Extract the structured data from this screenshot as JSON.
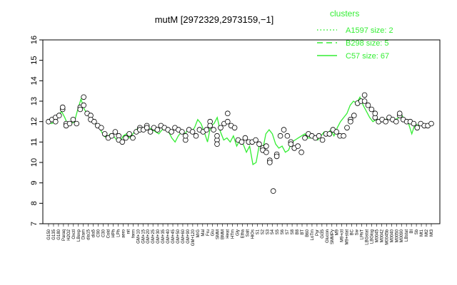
{
  "chart_data": {
    "type": "line",
    "title": "mutM [2972329,2973159,−1]",
    "xlabel": "",
    "ylabel": "",
    "ylim": [
      7,
      16
    ],
    "yticks": [
      7,
      8,
      9,
      10,
      11,
      12,
      13,
      14,
      15,
      16
    ],
    "grid": false,
    "legend_placement": "top-right",
    "legend_title": "clusters",
    "legend_color": "#33ee33",
    "legend": [
      {
        "label": "A1597 size: 2",
        "dash": "dotted"
      },
      {
        "label": "B298 size: 5",
        "dash": "dashed"
      },
      {
        "label": "C57 size: 67",
        "dash": "solid"
      }
    ],
    "x_tick_labels": [
      "G150",
      "G135",
      "G180",
      "Paraq",
      "H2O2",
      "Oxctl",
      "LBexp",
      "Diam",
      "dia15",
      "dia5",
      "C90",
      "C30",
      "Cold",
      "HPh",
      "LPh",
      "aero",
      "nit",
      "ferm",
      "GM+10",
      "GM+15",
      "GM+20",
      "GM+25",
      "GM+30",
      "GM+35",
      "GM+40",
      "GM+45",
      "GM+50",
      "GM+60",
      "GM+90",
      "GM+120",
      "M/G",
      "Mal",
      "Fru",
      "Glu",
      "SMM",
      "BMM",
      "Heat",
      "HTm",
      "Gly",
      "Etha",
      "Salt",
      "HiOs",
      "S1",
      "S2",
      "S3",
      "S4",
      "S5",
      "S6",
      "S7",
      "S8",
      "B8",
      "BT",
      "B60",
      "LoTm",
      "Pyr",
      "Gi35",
      "Glucon",
      "SMMPy",
      "M9",
      "M9+ctl",
      "M9+stat",
      "BC",
      "Sw",
      "LPhT",
      "LBGstat",
      "LBGlog",
      "M0045",
      "M0042",
      "M0045b",
      "M0040",
      "M0050",
      "M0090",
      "LBstat",
      "BI",
      "Sb",
      "Mt1",
      "Mt2",
      "Mt3"
    ],
    "series": [
      {
        "values": [
          12.0,
          11.9,
          12.0,
          12.3,
          12.5,
          12.2,
          11.8,
          11.9,
          12.0,
          12.6,
          13.1,
          12.6,
          12.4,
          12.3,
          12.0,
          11.8,
          11.6,
          11.3,
          11.2,
          11.4,
          11.3,
          11.1,
          11.0,
          11.3,
          11.4,
          11.2,
          11.4,
          11.6,
          11.7,
          11.6,
          11.8,
          11.7,
          11.6,
          11.5,
          11.4,
          11.6,
          11.7,
          11.5,
          11.2,
          11.0,
          11.3,
          11.5,
          11.4,
          11.6,
          11.5,
          11.7,
          12.1,
          11.9,
          11.5,
          11.0,
          11.8,
          11.9,
          12.2,
          11.5,
          11.1,
          11.2,
          11.0,
          11.3,
          10.8,
          11.1,
          10.9,
          10.5,
          10.8,
          9.9,
          10.0,
          10.9,
          10.6,
          11.4,
          11.6,
          11.4,
          10.9,
          10.7,
          10.8,
          10.5,
          10.6,
          11.0,
          11.1,
          11.2,
          11.3,
          11.4,
          11.2,
          11.2,
          11.2,
          11.1,
          11.3,
          11.5,
          11.4,
          11.6,
          11.3,
          11.7,
          12.0,
          12.2,
          12.4,
          12.8,
          13.0,
          12.9,
          13.2,
          12.8,
          12.5,
          12.2,
          12.0,
          12.1,
          12.1,
          12.0,
          12.1,
          12.2,
          12.0,
          12.1,
          12.2,
          12.3,
          12.0,
          11.9,
          11.4,
          11.9,
          11.8,
          11.9,
          11.7,
          11.8,
          11.9
        ]
      }
    ],
    "points": [
      [
        0,
        12.0
      ],
      [
        1,
        12.1
      ],
      [
        2,
        12.2
      ],
      [
        2,
        12.0
      ],
      [
        3,
        12.3
      ],
      [
        4,
        12.6
      ],
      [
        4,
        12.7
      ],
      [
        5,
        11.9
      ],
      [
        5,
        11.8
      ],
      [
        6,
        11.9
      ],
      [
        7,
        12.1
      ],
      [
        8,
        11.9
      ],
      [
        9,
        12.7
      ],
      [
        9,
        12.6
      ],
      [
        10,
        13.2
      ],
      [
        10,
        12.8
      ],
      [
        11,
        12.4
      ],
      [
        12,
        12.3
      ],
      [
        12,
        12.1
      ],
      [
        13,
        12.0
      ],
      [
        14,
        11.8
      ],
      [
        15,
        11.7
      ],
      [
        16,
        11.4
      ],
      [
        17,
        11.2
      ],
      [
        18,
        11.3
      ],
      [
        19,
        11.5
      ],
      [
        20,
        11.3
      ],
      [
        20,
        11.1
      ],
      [
        21,
        11.0
      ],
      [
        22,
        11.2
      ],
      [
        23,
        11.4
      ],
      [
        24,
        11.2
      ],
      [
        25,
        11.5
      ],
      [
        26,
        11.7
      ],
      [
        26,
        11.6
      ],
      [
        27,
        11.6
      ],
      [
        28,
        11.8
      ],
      [
        28,
        11.7
      ],
      [
        29,
        11.5
      ],
      [
        30,
        11.7
      ],
      [
        31,
        11.6
      ],
      [
        32,
        11.8
      ],
      [
        33,
        11.7
      ],
      [
        34,
        11.6
      ],
      [
        35,
        11.5
      ],
      [
        36,
        11.7
      ],
      [
        37,
        11.6
      ],
      [
        38,
        11.5
      ],
      [
        39,
        11.1
      ],
      [
        39,
        11.3
      ],
      [
        40,
        11.6
      ],
      [
        41,
        11.5
      ],
      [
        42,
        11.3
      ],
      [
        43,
        11.6
      ],
      [
        44,
        11.5
      ],
      [
        45,
        11.6
      ],
      [
        46,
        12.0
      ],
      [
        46,
        11.8
      ],
      [
        47,
        11.6
      ],
      [
        48,
        11.1
      ],
      [
        48,
        10.9
      ],
      [
        48,
        11.3
      ],
      [
        49,
        11.7
      ],
      [
        50,
        11.9
      ],
      [
        51,
        12.0
      ],
      [
        51,
        12.4
      ],
      [
        52,
        11.8
      ],
      [
        53,
        11.7
      ],
      [
        54,
        11.1
      ],
      [
        55,
        11.0
      ],
      [
        56,
        11.2
      ],
      [
        57,
        11.0
      ],
      [
        58,
        11.0
      ],
      [
        59,
        11.1
      ],
      [
        60,
        10.9
      ],
      [
        61,
        10.7
      ],
      [
        61,
        10.6
      ],
      [
        62,
        10.5
      ],
      [
        62,
        10.8
      ],
      [
        63,
        10.1
      ],
      [
        63,
        10.0
      ],
      [
        64,
        8.6
      ],
      [
        65,
        10.4
      ],
      [
        65,
        10.3
      ],
      [
        66,
        11.3
      ],
      [
        67,
        11.6
      ],
      [
        68,
        11.3
      ],
      [
        69,
        11.0
      ],
      [
        69,
        10.9
      ],
      [
        70,
        10.7
      ],
      [
        71,
        10.8
      ],
      [
        72,
        10.5
      ],
      [
        73,
        11.2
      ],
      [
        74,
        11.4
      ],
      [
        75,
        11.3
      ],
      [
        76,
        11.2
      ],
      [
        77,
        11.3
      ],
      [
        78,
        11.1
      ],
      [
        79,
        11.4
      ],
      [
        80,
        11.4
      ],
      [
        81,
        11.6
      ],
      [
        82,
        11.5
      ],
      [
        83,
        11.3
      ],
      [
        84,
        11.3
      ],
      [
        85,
        11.7
      ],
      [
        86,
        12.1
      ],
      [
        86,
        12.0
      ],
      [
        87,
        12.3
      ],
      [
        88,
        12.9
      ],
      [
        89,
        13.0
      ],
      [
        90,
        13.3
      ],
      [
        90,
        13.0
      ],
      [
        91,
        12.8
      ],
      [
        92,
        12.6
      ],
      [
        93,
        12.2
      ],
      [
        93,
        12.4
      ],
      [
        94,
        12.0
      ],
      [
        95,
        12.1
      ],
      [
        96,
        12.0
      ],
      [
        97,
        12.2
      ],
      [
        98,
        12.1
      ],
      [
        99,
        12.0
      ],
      [
        100,
        12.3
      ],
      [
        100,
        12.4
      ],
      [
        101,
        12.1
      ],
      [
        102,
        12.0
      ],
      [
        103,
        12.0
      ],
      [
        104,
        11.9
      ],
      [
        105,
        11.7
      ],
      [
        106,
        11.9
      ],
      [
        107,
        11.8
      ],
      [
        108,
        11.8
      ],
      [
        109,
        11.9
      ]
    ],
    "point_count": 110
  }
}
